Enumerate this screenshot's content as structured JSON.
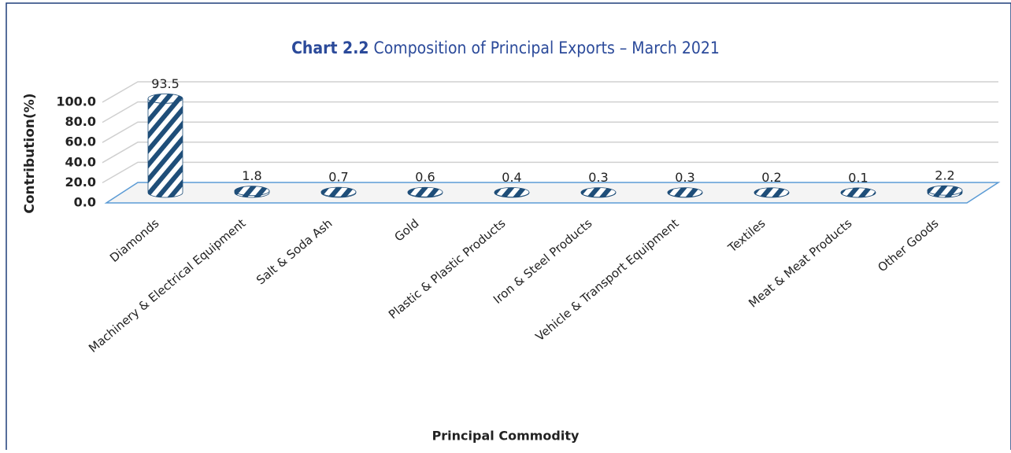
{
  "chart_data": {
    "type": "bar",
    "title_label": "Chart 2.2",
    "title": "Composition of Principal Exports – March 2021",
    "x_label": "Principal Commodity",
    "y_label": "Contribution(%)",
    "categories": [
      "Diamonds",
      "Machinery & Electrical Equipment",
      "Salt & Soda Ash",
      "Gold",
      "Plastic & Plastic Products",
      "Iron & Steel Products",
      "Vehicle & Transport Equipment",
      "Textiles",
      "Meat & Meat Products",
      "Other Goods"
    ],
    "values": [
      93.5,
      1.8,
      0.7,
      0.6,
      0.4,
      0.3,
      0.3,
      0.2,
      0.1,
      2.2
    ],
    "color": "#1f4e79",
    "ylim": [
      0,
      100
    ],
    "yticks": [
      {
        "value": 0,
        "label": "0.0"
      },
      {
        "value": 20,
        "label": "20.0"
      },
      {
        "value": 40,
        "label": "40.0"
      },
      {
        "value": 60,
        "label": "60.0"
      },
      {
        "value": 80,
        "label": "80.0"
      },
      {
        "value": 100,
        "label": "100.0"
      }
    ],
    "grid": true
  }
}
